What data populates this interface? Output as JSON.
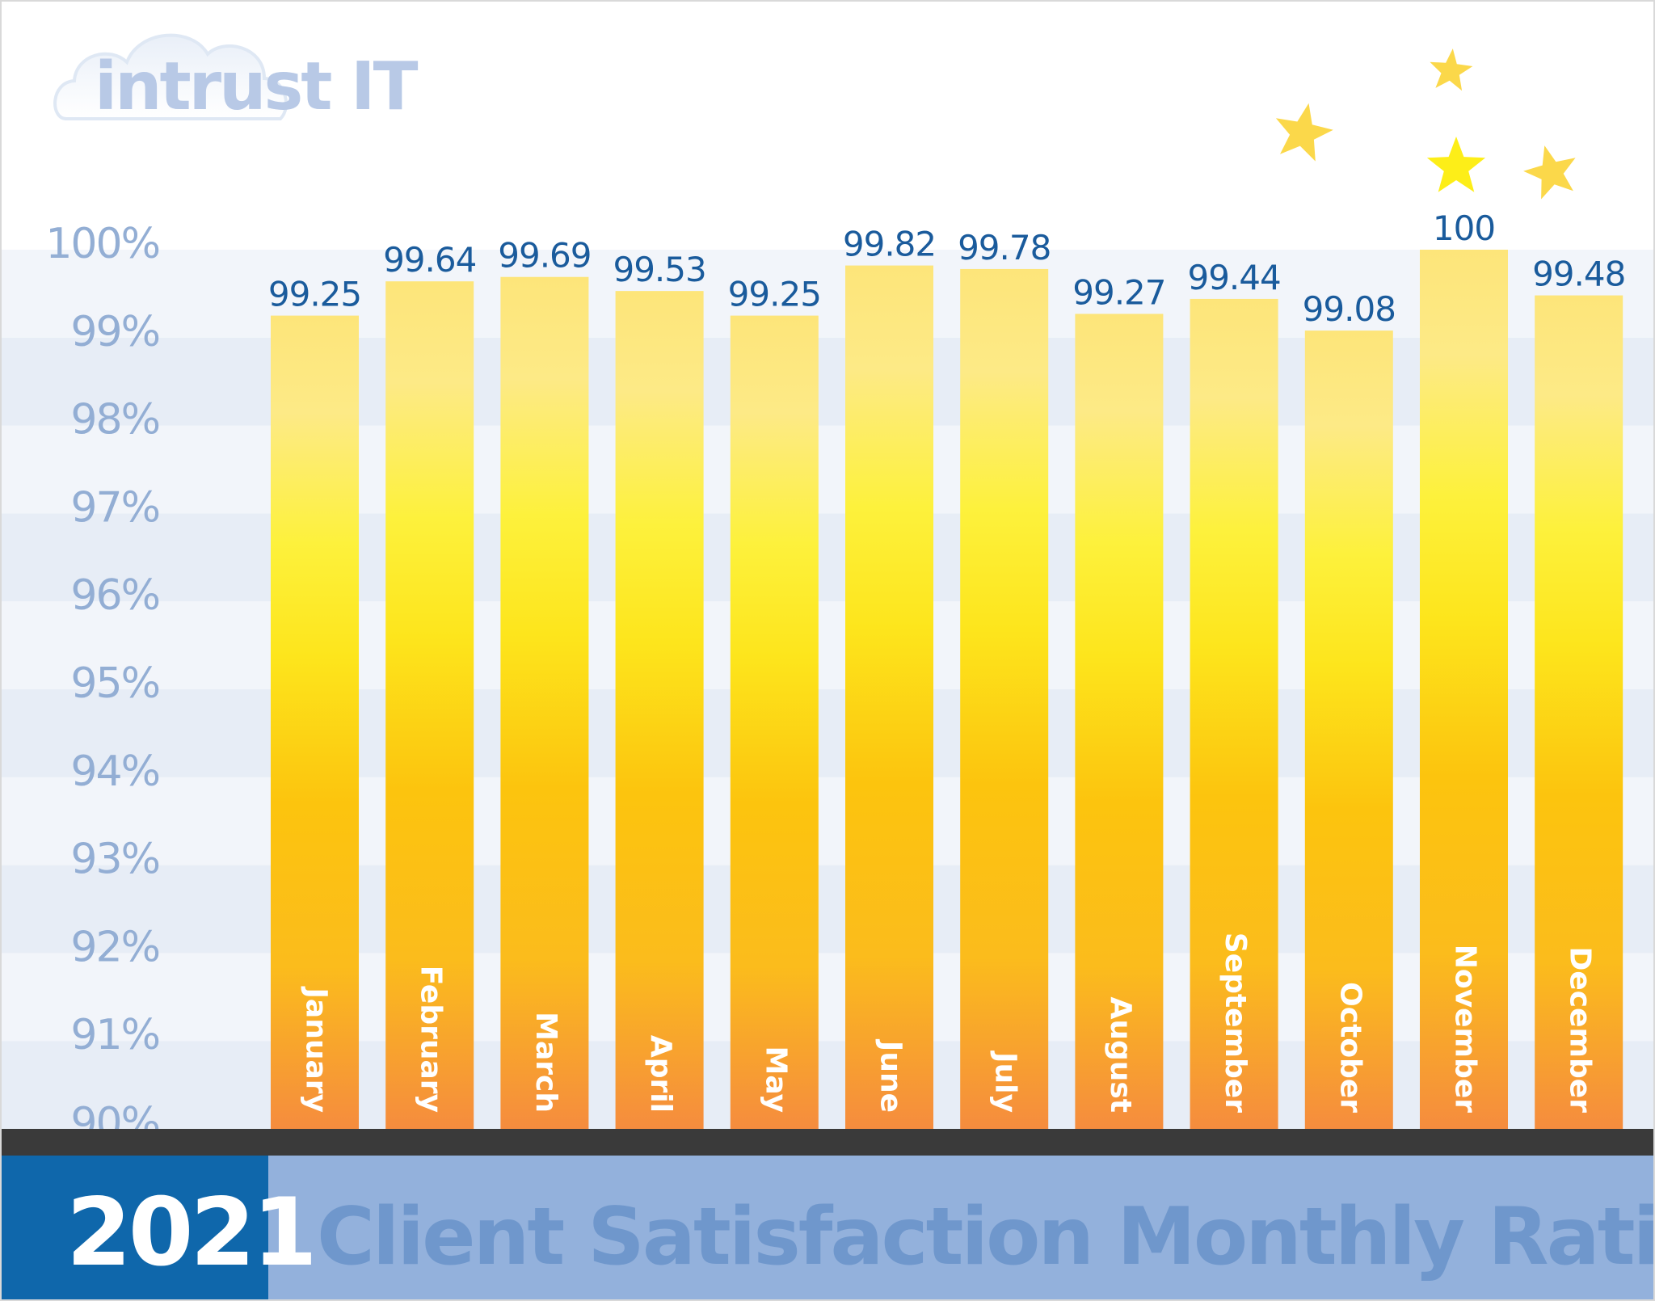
{
  "logo": {
    "text": "intrust IT"
  },
  "title_bar": {
    "year": "2021",
    "title": "Client Satisfaction Monthly Rating"
  },
  "colors": {
    "year_box": "#0f67ab",
    "title_bar": "#93b1dc",
    "title_text": "#6f97cc",
    "value_label": "#1a5b9c",
    "tick_label": "#93aed4",
    "baseline": "#3a3a3a",
    "star": "#fbd84a",
    "bar_top": "#fdf08a",
    "bar_mid": "#fdee33",
    "bar_low": "#fbc31a",
    "bar_bottom": "#f6903c"
  },
  "chart_data": {
    "type": "bar",
    "categories": [
      "January",
      "February",
      "March",
      "April",
      "May",
      "June",
      "July",
      "August",
      "September",
      "October",
      "November",
      "December"
    ],
    "values": [
      99.25,
      99.64,
      99.69,
      99.53,
      99.25,
      99.82,
      99.78,
      99.27,
      99.44,
      99.08,
      100,
      99.48
    ],
    "value_labels": [
      "99.25",
      "99.64",
      "99.69",
      "99.53",
      "99.25",
      "99.82",
      "99.78",
      "99.27",
      "99.44",
      "99.08",
      "100",
      "99.48"
    ],
    "y_ticks": [
      "90%",
      "91%",
      "92%",
      "93%",
      "94%",
      "95%",
      "96%",
      "97%",
      "98%",
      "99%",
      "100%"
    ],
    "ylim": [
      90,
      100
    ],
    "ylabel": "",
    "xlabel": "",
    "legend": "none",
    "grid": "alternating horizontal bands",
    "stars_near": "November"
  }
}
